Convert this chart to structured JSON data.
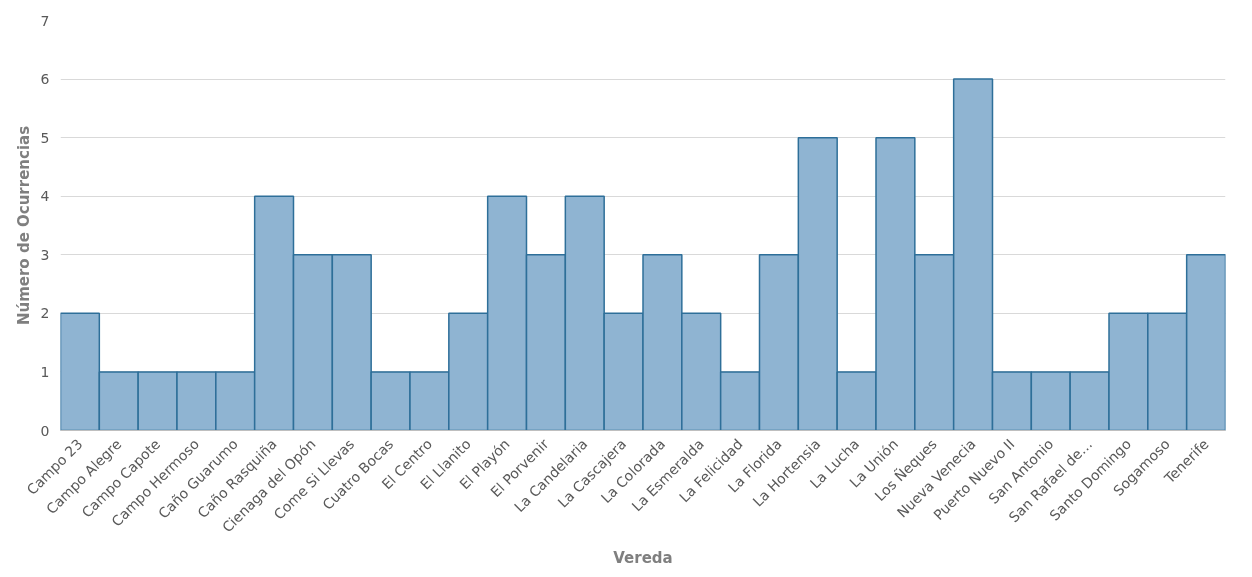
{
  "chart_data": {
    "type": "bar",
    "xlabel": "Vereda",
    "ylabel": "Número de Ocurrencias",
    "categories": [
      "Campo 23",
      "Campo Alegre",
      "Campo Capote",
      "Campo Hermoso",
      "Caño Guarumo",
      "Caño Rasquiña",
      "Cienaga del Opón",
      "Come Si Llevas",
      "Cuatro Bocas",
      "El Centro",
      "El Llanito",
      "El Playón",
      "El Porvenir",
      "La Candelaria",
      "La Cascajera",
      "La Colorada",
      "La Esmeralda",
      "La Felicidad",
      "La Florida",
      "La Hortensia",
      "La Lucha",
      "La Unión",
      "Los Ñeques",
      "Nueva Venecia",
      "Puerto Nuevo II",
      "San Antonio",
      "San Rafael de…",
      "Santo Domingo",
      "Sogamoso",
      "Tenerife"
    ],
    "values": [
      2,
      1,
      1,
      1,
      1,
      4,
      3,
      3,
      1,
      1,
      2,
      4,
      3,
      4,
      2,
      3,
      2,
      1,
      3,
      5,
      1,
      5,
      3,
      6,
      1,
      1,
      1,
      2,
      2,
      3
    ],
    "color": "#8fb4d2",
    "ylim": [
      0,
      7
    ],
    "yticks": [
      0,
      1,
      2,
      3,
      4,
      5,
      6,
      7
    ],
    "grid": "y"
  }
}
